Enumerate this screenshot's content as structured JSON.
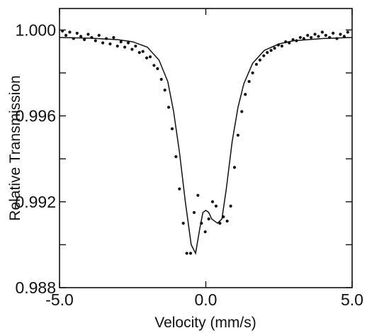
{
  "chart_data": {
    "type": "scatter",
    "title": "",
    "xlabel": "Velocity (mm/s)",
    "ylabel": "Relative Transmission",
    "xlim": [
      -5.0,
      5.0
    ],
    "ylim": [
      0.988,
      1.001
    ],
    "x_ticks": [
      -5.0,
      0.0,
      5.0
    ],
    "x_tick_labels": [
      "-5.0",
      "0.0",
      "5.0"
    ],
    "y_ticks": [
      0.988,
      0.992,
      0.996,
      1.0
    ],
    "y_tick_labels": [
      "0.988",
      "0.992",
      "0.996",
      "1.000"
    ],
    "grid": false,
    "legend": "none",
    "series": [
      {
        "kind": "points",
        "x": [
          -4.9,
          -4.78,
          -4.65,
          -4.52,
          -4.4,
          -4.27,
          -4.15,
          -4.02,
          -3.9,
          -3.77,
          -3.65,
          -3.52,
          -3.4,
          -3.27,
          -3.15,
          -3.02,
          -2.9,
          -2.77,
          -2.65,
          -2.52,
          -2.4,
          -2.27,
          -2.15,
          -2.02,
          -1.9,
          -1.77,
          -1.65,
          -1.52,
          -1.4,
          -1.27,
          -1.15,
          -1.02,
          -0.9,
          -0.77,
          -0.65,
          -0.52,
          -0.4,
          -0.27,
          -0.15,
          -0.02,
          0.1,
          0.23,
          0.35,
          0.48,
          0.6,
          0.73,
          0.85,
          0.98,
          1.1,
          1.23,
          1.35,
          1.48,
          1.6,
          1.73,
          1.85,
          1.98,
          2.1,
          2.23,
          2.35,
          2.48,
          2.6,
          2.73,
          2.85,
          2.98,
          3.1,
          3.23,
          3.35,
          3.48,
          3.6,
          3.73,
          3.85,
          3.98,
          4.1,
          4.23,
          4.35,
          4.48,
          4.6,
          4.73,
          4.85
        ],
        "y": [
          0.99995,
          0.99975,
          0.9999,
          0.9996,
          0.99985,
          0.9997,
          0.99955,
          0.9998,
          0.99965,
          0.9995,
          0.99975,
          0.9994,
          0.9996,
          0.99935,
          0.99965,
          0.99925,
          0.99945,
          0.9992,
          0.9994,
          0.9991,
          0.99925,
          0.99895,
          0.999,
          0.9987,
          0.99875,
          0.99835,
          0.9982,
          0.9977,
          0.9972,
          0.9964,
          0.9954,
          0.9941,
          0.9926,
          0.991,
          0.9896,
          0.9896,
          0.9915,
          0.9923,
          0.991,
          0.9906,
          0.9912,
          0.992,
          0.9918,
          0.991,
          0.9913,
          0.9911,
          0.9918,
          0.9936,
          0.9951,
          0.9962,
          0.997,
          0.9976,
          0.998,
          0.9984,
          0.9986,
          0.9988,
          0.99895,
          0.99905,
          0.99915,
          0.9993,
          0.99925,
          0.99945,
          0.9994,
          0.99955,
          0.9995,
          0.99965,
          0.9996,
          0.99975,
          0.99965,
          0.9998,
          0.9997,
          0.9999,
          0.99975,
          0.99965,
          0.99985,
          0.9996,
          0.9998,
          0.9997,
          0.9999
        ]
      },
      {
        "kind": "fit-line",
        "x": [
          -5.0,
          -4.0,
          -3.0,
          -2.5,
          -2.0,
          -1.6,
          -1.3,
          -1.1,
          -0.9,
          -0.7,
          -0.5,
          -0.35,
          -0.2,
          -0.1,
          0.0,
          0.1,
          0.2,
          0.3,
          0.4,
          0.55,
          0.7,
          0.9,
          1.1,
          1.3,
          1.6,
          2.0,
          2.5,
          3.0,
          4.0,
          5.0
        ],
        "y": [
          0.99965,
          0.99962,
          0.99955,
          0.99945,
          0.9992,
          0.9986,
          0.9976,
          0.9962,
          0.9943,
          0.992,
          0.99,
          0.9896,
          0.9908,
          0.9915,
          0.9916,
          0.9915,
          0.9912,
          0.9911,
          0.991,
          0.9912,
          0.9926,
          0.9948,
          0.9964,
          0.9975,
          0.99845,
          0.99905,
          0.99935,
          0.9995,
          0.9996,
          0.99965
        ]
      }
    ]
  }
}
